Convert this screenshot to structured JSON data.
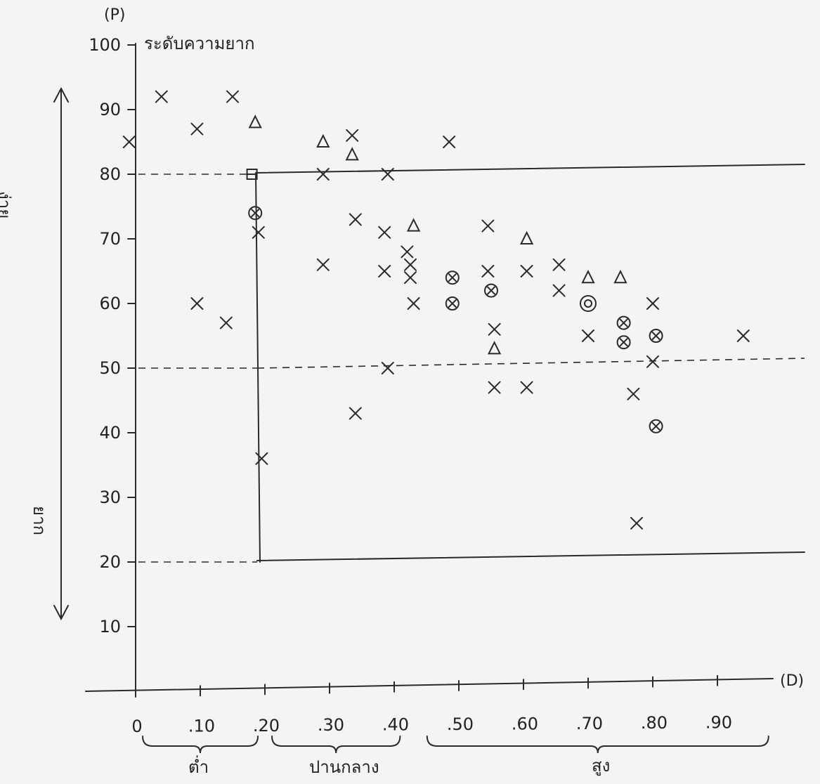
{
  "chart_data": {
    "type": "scatter",
    "title": "ระดับความยาก",
    "ylabel": "(P)",
    "xlabel": "(D)",
    "xlim": [
      0,
      1.0
    ],
    "ylim": [
      0,
      100
    ],
    "grid": false,
    "y_ticks": [
      10,
      20,
      30,
      40,
      50,
      60,
      70,
      80,
      90,
      100
    ],
    "y_tick_labels": [
      "10",
      "20",
      "30",
      "40",
      "50",
      "60",
      "70",
      "80",
      "90",
      "100"
    ],
    "x_ticks": [
      0,
      0.1,
      0.2,
      0.3,
      0.4,
      0.5,
      0.6,
      0.7,
      0.8,
      0.9
    ],
    "x_tick_labels": [
      "0",
      ".10",
      ".20",
      ".30",
      ".40",
      ".50",
      ".60",
      ".70",
      ".80",
      ".90"
    ],
    "easy_label": "ง่าย",
    "hard_label": "ยาก",
    "d_groups": [
      {
        "label": "ต่ำ",
        "from": 0.0,
        "to": 0.2
      },
      {
        "label": "ปานกลาง",
        "from": 0.2,
        "to": 0.42
      },
      {
        "label": "สูง",
        "from": 0.44,
        "to": 1.0
      }
    ],
    "reference_lines": {
      "p_dashed": [
        80,
        50,
        20
      ],
      "d_vertical": 0.2,
      "p_solid_right": [
        80,
        20
      ]
    },
    "points": [
      {
        "x": -0.01,
        "y": 85,
        "marker": "x"
      },
      {
        "x": 0.04,
        "y": 92,
        "marker": "x"
      },
      {
        "x": 0.095,
        "y": 87,
        "marker": "x"
      },
      {
        "x": 0.15,
        "y": 92,
        "marker": "x"
      },
      {
        "x": 0.095,
        "y": 60,
        "marker": "x"
      },
      {
        "x": 0.14,
        "y": 57,
        "marker": "x"
      },
      {
        "x": 0.185,
        "y": 88,
        "marker": "triangle"
      },
      {
        "x": 0.18,
        "y": 80,
        "marker": "square"
      },
      {
        "x": 0.185,
        "y": 74,
        "marker": "circle-x"
      },
      {
        "x": 0.19,
        "y": 71,
        "marker": "x"
      },
      {
        "x": 0.195,
        "y": 36,
        "marker": "x"
      },
      {
        "x": 0.29,
        "y": 85,
        "marker": "triangle"
      },
      {
        "x": 0.29,
        "y": 80,
        "marker": "x"
      },
      {
        "x": 0.29,
        "y": 66,
        "marker": "x"
      },
      {
        "x": 0.335,
        "y": 86,
        "marker": "x"
      },
      {
        "x": 0.335,
        "y": 83,
        "marker": "triangle"
      },
      {
        "x": 0.34,
        "y": 73,
        "marker": "x"
      },
      {
        "x": 0.34,
        "y": 43,
        "marker": "x"
      },
      {
        "x": 0.39,
        "y": 80,
        "marker": "x"
      },
      {
        "x": 0.385,
        "y": 71,
        "marker": "x"
      },
      {
        "x": 0.385,
        "y": 65,
        "marker": "x"
      },
      {
        "x": 0.39,
        "y": 50,
        "marker": "x"
      },
      {
        "x": 0.42,
        "y": 68,
        "marker": "x"
      },
      {
        "x": 0.425,
        "y": 66,
        "marker": "x"
      },
      {
        "x": 0.425,
        "y": 64,
        "marker": "x"
      },
      {
        "x": 0.43,
        "y": 60,
        "marker": "x"
      },
      {
        "x": 0.43,
        "y": 72,
        "marker": "triangle"
      },
      {
        "x": 0.485,
        "y": 85,
        "marker": "x"
      },
      {
        "x": 0.49,
        "y": 64,
        "marker": "circle-x"
      },
      {
        "x": 0.49,
        "y": 60,
        "marker": "circle-x"
      },
      {
        "x": 0.545,
        "y": 72,
        "marker": "x"
      },
      {
        "x": 0.545,
        "y": 65,
        "marker": "x"
      },
      {
        "x": 0.55,
        "y": 62,
        "marker": "circle-x"
      },
      {
        "x": 0.555,
        "y": 56,
        "marker": "x"
      },
      {
        "x": 0.555,
        "y": 53,
        "marker": "triangle"
      },
      {
        "x": 0.555,
        "y": 47,
        "marker": "x"
      },
      {
        "x": 0.605,
        "y": 65,
        "marker": "x"
      },
      {
        "x": 0.605,
        "y": 47,
        "marker": "x"
      },
      {
        "x": 0.605,
        "y": 70,
        "marker": "triangle"
      },
      {
        "x": 0.655,
        "y": 66,
        "marker": "x"
      },
      {
        "x": 0.655,
        "y": 62,
        "marker": "x"
      },
      {
        "x": 0.7,
        "y": 64,
        "marker": "triangle"
      },
      {
        "x": 0.7,
        "y": 60,
        "marker": "circle-dot"
      },
      {
        "x": 0.7,
        "y": 55,
        "marker": "x"
      },
      {
        "x": 0.75,
        "y": 64,
        "marker": "triangle"
      },
      {
        "x": 0.755,
        "y": 57,
        "marker": "circle-x"
      },
      {
        "x": 0.755,
        "y": 54,
        "marker": "circle-x"
      },
      {
        "x": 0.77,
        "y": 46,
        "marker": "x"
      },
      {
        "x": 0.775,
        "y": 26,
        "marker": "x"
      },
      {
        "x": 0.8,
        "y": 60,
        "marker": "x"
      },
      {
        "x": 0.805,
        "y": 55,
        "marker": "circle-x"
      },
      {
        "x": 0.8,
        "y": 51,
        "marker": "x"
      },
      {
        "x": 0.805,
        "y": 41,
        "marker": "circle-x"
      },
      {
        "x": 0.94,
        "y": 55,
        "marker": "x"
      }
    ]
  }
}
